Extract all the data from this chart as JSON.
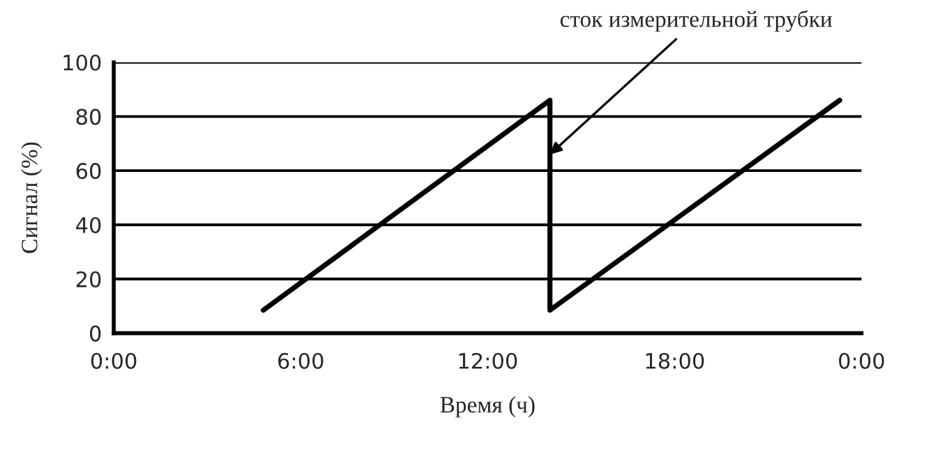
{
  "chart_data": {
    "type": "line",
    "xlabel": "Время (ч)",
    "ylabel": "Сигнал (%)",
    "series": [
      {
        "color": "#000000",
        "x": [
          4.8,
          14.0,
          14.0,
          23.3
        ],
        "values": [
          8.5,
          86,
          8.5,
          86
        ]
      }
    ],
    "xlim": [
      0,
      24
    ],
    "xticks": [
      {
        "value": 0,
        "label": "0:00"
      },
      {
        "value": 6,
        "label": "6:00"
      },
      {
        "value": 12,
        "label": "12:00"
      },
      {
        "value": 18,
        "label": "18:00"
      },
      {
        "value": 24,
        "label": "0:00"
      }
    ],
    "ylim": [
      0,
      100
    ],
    "yticks": [
      0,
      20,
      40,
      60,
      80,
      100
    ],
    "grid": "y",
    "marker": "none",
    "line_style": "solid",
    "legend": false,
    "annotations": [
      {
        "text": "сток измерительной трубки",
        "x": 14.0,
        "y": 66
      }
    ]
  }
}
